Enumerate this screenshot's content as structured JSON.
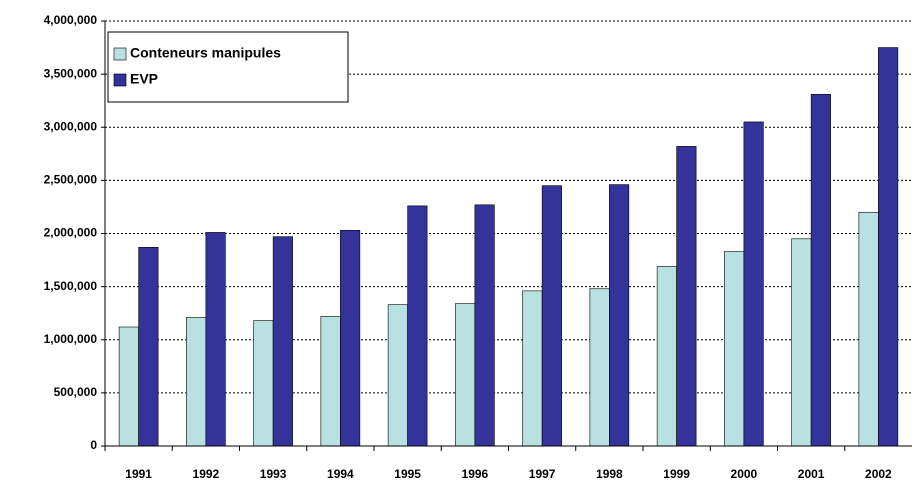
{
  "chart_data": {
    "type": "bar",
    "categories": [
      "1991",
      "1992",
      "1993",
      "1994",
      "1995",
      "1996",
      "1997",
      "1998",
      "1999",
      "2000",
      "2001",
      "2002"
    ],
    "series": [
      {
        "name": "Conteneurs manipules",
        "color": "#b9e1e1",
        "values": [
          1120000,
          1210000,
          1180000,
          1220000,
          1330000,
          1340000,
          1460000,
          1480000,
          1690000,
          1830000,
          1950000,
          2200000
        ]
      },
      {
        "name": "EVP",
        "color": "#333399",
        "values": [
          1870000,
          2010000,
          1970000,
          2030000,
          2260000,
          2270000,
          2450000,
          2460000,
          2820000,
          3050000,
          3310000,
          3750000
        ]
      }
    ],
    "ylim": [
      0,
      4000000
    ],
    "yticks": [
      0,
      {
        "value": 500000,
        "label": "500,000"
      },
      {
        "value": 1000000,
        "label": "1,000,000"
      },
      {
        "value": 1500000,
        "label": "1,500,000"
      },
      {
        "value": 2000000,
        "label": "2,000,000"
      },
      {
        "value": 2500000,
        "label": "2,500,000"
      },
      {
        "value": 3000000,
        "label": "3,000,000"
      },
      {
        "value": 3500000,
        "label": "3,500,000"
      },
      {
        "value": 4000000,
        "label": "4,000,000"
      }
    ],
    "grid": true,
    "legend": "top-left"
  }
}
